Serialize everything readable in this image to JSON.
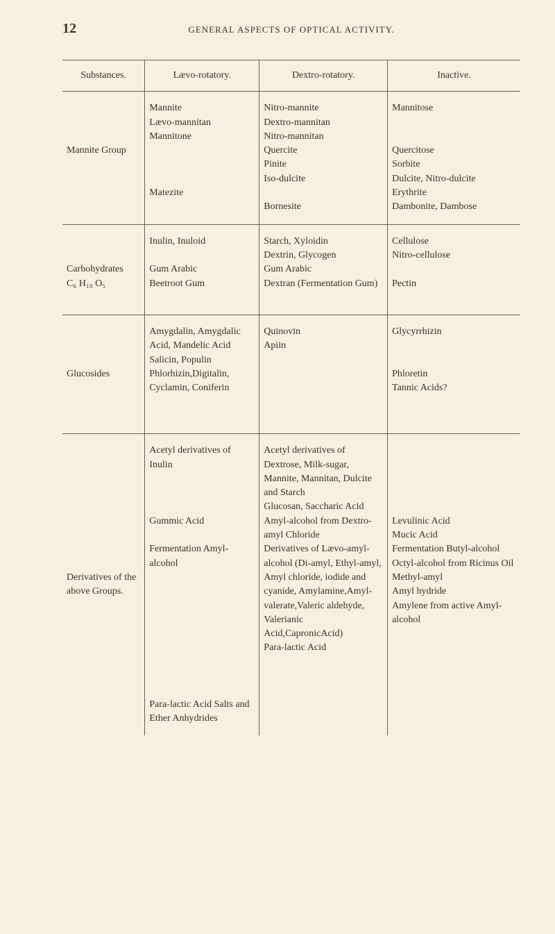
{
  "page_number": "12",
  "title": "GENERAL ASPECTS OF OPTICAL ACTIVITY.",
  "headers": {
    "substances": "Substances.",
    "laevo": "Lævo-rotatory.",
    "dextro": "Dextro-rotatory.",
    "inactive": "Inactive."
  },
  "rows": {
    "mannite": {
      "substance": "Mannite Group",
      "laevo1": "Mannite",
      "laevo2": "Lævo-mannitan",
      "laevo3": "Mannitone",
      "laevo4": "Matezite",
      "dextro1": "Nitro-mannite",
      "dextro2": "Dextro-mannitan",
      "dextro3": "Nitro-mannitan",
      "dextro4": "Quercite",
      "dextro5": "Pinite",
      "dextro6": "Iso-dulcite",
      "dextro7": "Bornesite",
      "inactive1": "Mannitose",
      "inactive2": "Quercitose",
      "inactive3": "Sorbite",
      "inactive4": "Dulcite, Nitro-dulcite",
      "inactive5": "Erythrite",
      "inactive6": "Dambonite, Dambose"
    },
    "carbo": {
      "substance1": "Carbohydrates",
      "substance2": "C₆ H₁₀ O₅",
      "laevo1": "Inulin, Inuloid",
      "laevo2": "Gum Arabic",
      "laevo3": "Beetroot Gum",
      "dextro1": "Starch, Xyloidin",
      "dextro2": "Dextrin, Glycogen",
      "dextro3": "Gum Arabic",
      "dextro4": "Dextran (Fermentation Gum)",
      "inactive1": "Cellulose",
      "inactive2": "Nitro-cellulose",
      "inactive3": "Pectin"
    },
    "gluco": {
      "substance": "Glucosides",
      "laevo1": "Amygdalin, Amygdalic Acid, Mandelic Acid",
      "laevo2": "Salicin, Populin",
      "laevo3": "Phlorhizin,Digitalin,",
      "laevo4": "Cyclamin, Coniferin",
      "dextro1": "Quinovin",
      "dextro2": "Apiin",
      "inactive1": "Glycyrrhizin",
      "inactive2": "Phloretin",
      "inactive3": "Tannic Acids?"
    },
    "deriv": {
      "substance1": "Derivatives of the",
      "substance2": "above Groups.",
      "laevo1": "Acetyl derivatives of Inulin",
      "laevo2": "Gummic Acid",
      "laevo3": "Fermentation Amyl-alcohol",
      "laevo4": "Para-lactic Acid Salts and Ether Anhydrides",
      "dextro1": "Acetyl derivatives of Dextrose, Milk-sugar, Mannite, Mannitan, Dulcite and Starch",
      "dextro2": "Glucosan, Saccharic Acid",
      "dextro3": "Amyl-alcohol from Dextro-amyl Chloride",
      "dextro4": "Derivatives of Lævo-amyl-alcohol (Di-amyl, Ethyl-amyl, Amyl chloride, iodide and cyanide, Amylamine,Amyl-valerate,Valeric aldehyde, Valerianic Acid,CapronicAcid)",
      "dextro5": "Para-lactic Acid",
      "inactive1": "Levulinic Acid",
      "inactive2": "Mucic Acid",
      "inactive3": "Fermentation Butyl-alcohol",
      "inactive4": "Octyl-alcohol from Ricinus Oil",
      "inactive5": "Methyl-amyl",
      "inactive6": "Amyl hydride",
      "inactive7": "Amylene from active Amyl-alcohol"
    }
  }
}
